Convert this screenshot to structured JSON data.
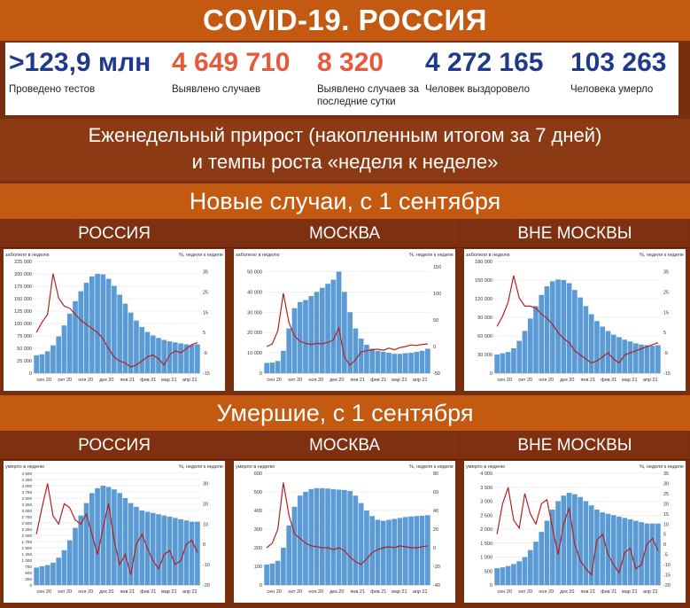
{
  "title": "COVID-19. РОССИЯ",
  "stats": [
    {
      "value": ">123,9 млн",
      "label": "Проведено тестов",
      "color": "blue"
    },
    {
      "value": "4 649 710",
      "label": "Выявлено случаев",
      "color": "red"
    },
    {
      "value": "8 320",
      "label": "Выявлено случаев за последние сутки",
      "color": "red"
    },
    {
      "value": "4 272 165",
      "label": "Человек выздоровело",
      "color": "blue"
    },
    {
      "value": "103 263",
      "label": "Человека умерло",
      "color": "blue"
    }
  ],
  "subtitle_line1": "Еженедельный прирост (накопленным итогом за 7 дней)",
  "subtitle_line2": "и темпы роста «неделя к неделе»",
  "section_cases": "Новые случаи, с 1 сентября",
  "section_deaths": "Умершие, с 1 сентября",
  "colors": {
    "bars": "#5b9bd5",
    "line": "#b22222",
    "band": "#c45a12"
  },
  "chart_data": [
    {
      "type": "bar",
      "panel_title": "РОССИЯ",
      "ylabel": "заболело в неделю",
      "y2label": "%, неделя к неделе",
      "ylim": [
        0,
        225000
      ],
      "yticks": [
        0,
        25000,
        50000,
        75000,
        100000,
        125000,
        150000,
        175000,
        200000,
        225000
      ],
      "ytick_labels": [
        "0",
        "25 000",
        "50 000",
        "75 000",
        "100 000",
        "125 000",
        "150 000",
        "175 000",
        "200 000",
        "225 000"
      ],
      "y2lim": [
        -15,
        40
      ],
      "y2ticks": [
        -15,
        -5,
        5,
        15,
        25,
        35
      ],
      "xticks": [
        "сен 20",
        "окт 20",
        "ноя 20",
        "дек 20",
        "янв 21",
        "фев 21",
        "мар 21",
        "апр 21"
      ],
      "bars": [
        36000,
        38000,
        44000,
        56000,
        74000,
        96000,
        120000,
        145000,
        165000,
        182000,
        195000,
        200000,
        199000,
        190000,
        176000,
        158000,
        140000,
        122000,
        106000,
        93000,
        83000,
        76000,
        71000,
        67000,
        64000,
        62000,
        60000,
        58000,
        57000,
        58000
      ],
      "line": [
        5,
        10,
        14,
        34,
        22,
        18,
        17,
        14,
        11,
        9,
        7,
        5,
        2,
        -3,
        -7,
        -9,
        -10,
        -12,
        -11,
        -9,
        -7,
        -6,
        -8,
        -11,
        -6,
        -4,
        -5,
        -3,
        -1,
        0
      ]
    },
    {
      "type": "bar",
      "panel_title": "МОСКВА",
      "ylabel": "заболело в неделю",
      "y2label": "%, неделя к неделе",
      "ylim": [
        0,
        55000
      ],
      "yticks": [
        0,
        10000,
        20000,
        30000,
        40000,
        50000
      ],
      "ytick_labels": [
        "0",
        "10 000",
        "20 000",
        "30 000",
        "40 000",
        "50 000"
      ],
      "y2lim": [
        -50,
        160
      ],
      "y2ticks": [
        -50,
        0,
        50,
        100,
        150
      ],
      "xticks": [
        "сен 20",
        "окт 20",
        "ноя 20",
        "дек 20",
        "янв 21",
        "фев 21",
        "мар 21",
        "апр 21"
      ],
      "bars": [
        5000,
        5200,
        6000,
        11000,
        22000,
        32000,
        35000,
        36000,
        38000,
        40000,
        42000,
        44000,
        46000,
        50000,
        40000,
        30000,
        22000,
        17000,
        14000,
        12000,
        11000,
        10500,
        10000,
        9500,
        9500,
        9800,
        10000,
        10500,
        11000,
        12000
      ],
      "line": [
        0,
        5,
        30,
        100,
        45,
        20,
        10,
        6,
        4,
        6,
        5,
        8,
        12,
        35,
        -20,
        -35,
        -25,
        -10,
        -8,
        -6,
        -5,
        -7,
        -3,
        -6,
        -2,
        0,
        3,
        2,
        4,
        5
      ]
    },
    {
      "type": "bar",
      "panel_title": "ВНЕ МОСКВЫ",
      "ylabel": "заболело в неделю",
      "y2label": "%, неделя к неделе",
      "ylim": [
        0,
        180000
      ],
      "yticks": [
        0,
        30000,
        60000,
        90000,
        120000,
        150000,
        180000
      ],
      "ytick_labels": [
        "0",
        "30 000",
        "60 000",
        "90 000",
        "120 000",
        "150 000",
        "180 000"
      ],
      "y2lim": [
        -15,
        40
      ],
      "y2ticks": [
        -15,
        -5,
        5,
        15,
        25,
        35
      ],
      "xticks": [
        "сен 20",
        "окт 20",
        "ноя 20",
        "дек 20",
        "янв 21",
        "фев 21",
        "мар 21",
        "апр 21"
      ],
      "bars": [
        30000,
        32000,
        34000,
        40000,
        52000,
        68000,
        88000,
        108000,
        126000,
        140000,
        148000,
        151000,
        150000,
        145000,
        134000,
        122000,
        108000,
        95000,
        84000,
        75000,
        68000,
        62000,
        58000,
        54000,
        51000,
        48000,
        46000,
        45000,
        44000,
        45000
      ],
      "line": [
        8,
        13,
        20,
        33,
        22,
        18,
        18,
        17,
        14,
        12,
        9,
        5,
        2,
        0,
        -4,
        -6,
        -8,
        -10,
        -9,
        -7,
        -5,
        -8,
        -10,
        -6,
        -5,
        -4,
        -3,
        -2,
        -1,
        0
      ]
    },
    {
      "type": "bar",
      "panel_title": "РОССИЯ",
      "ylabel": "умерло в неделю",
      "y2label": "%, неделя к неделе",
      "ylim": [
        0,
        4500
      ],
      "yticks": [
        0,
        250,
        500,
        750,
        1000,
        1250,
        1500,
        1750,
        2000,
        2250,
        2500,
        2750,
        3000,
        3250,
        3500,
        3750,
        4000,
        4250,
        4500
      ],
      "ytick_labels": [
        "0",
        "250",
        "500",
        "750",
        "1 000",
        "1 250",
        "1 500",
        "1 750",
        "2 000",
        "2 250",
        "2 500",
        "2 750",
        "3 000",
        "3 250",
        "3 500",
        "3 750",
        "4 000",
        "4 250",
        "4 500"
      ],
      "y2lim": [
        -20,
        35
      ],
      "y2ticks": [
        -20,
        -10,
        0,
        10,
        20,
        30
      ],
      "xticks": [
        "сен 20",
        "окт 20",
        "ноя 20",
        "дек 20",
        "янв 21",
        "фев 21",
        "мар 21",
        "апр 21"
      ],
      "bars": [
        700,
        750,
        800,
        900,
        1100,
        1400,
        1800,
        2300,
        2800,
        3300,
        3700,
        3900,
        4000,
        3950,
        3850,
        3700,
        3500,
        3300,
        3150,
        3000,
        2950,
        2900,
        2850,
        2800,
        2750,
        2700,
        2650,
        2600,
        2550,
        2550
      ],
      "line": [
        5,
        18,
        30,
        14,
        10,
        20,
        18,
        12,
        10,
        15,
        5,
        -5,
        8,
        20,
        2,
        -10,
        -5,
        -15,
        0,
        5,
        -2,
        -8,
        -12,
        -5,
        -3,
        -10,
        -8,
        0,
        2,
        -4
      ]
    },
    {
      "type": "bar",
      "panel_title": "МОСКВА",
      "ylabel": "умерло в неделю",
      "y2label": "%, неделя к неделе",
      "ylim": [
        0,
        600
      ],
      "yticks": [
        0,
        100,
        200,
        300,
        400,
        500,
        600
      ],
      "ytick_labels": [
        "0",
        "100",
        "200",
        "300",
        "400",
        "500",
        "600"
      ],
      "y2lim": [
        -40,
        80
      ],
      "y2ticks": [
        -40,
        -20,
        0,
        20,
        40,
        60,
        80
      ],
      "xticks": [
        "сен 20",
        "окт 20",
        "ноя 20",
        "дек 20",
        "янв 21",
        "фев 21",
        "мар 21",
        "апр 21"
      ],
      "bars": [
        110,
        115,
        130,
        200,
        320,
        420,
        480,
        500,
        515,
        520,
        520,
        518,
        515,
        512,
        510,
        505,
        480,
        440,
        400,
        370,
        350,
        345,
        350,
        355,
        360,
        365,
        368,
        370,
        372,
        375
      ],
      "line": [
        0,
        5,
        20,
        70,
        35,
        15,
        10,
        5,
        2,
        1,
        0,
        0,
        -2,
        0,
        -3,
        -10,
        -15,
        -18,
        -12,
        -5,
        -2,
        0,
        1,
        0,
        2,
        1,
        0,
        0,
        1,
        2
      ]
    },
    {
      "type": "bar",
      "panel_title": "ВНЕ МОСКВЫ",
      "ylabel": "умерло в неделю",
      "y2label": "%, неделя к неделе",
      "ylim": [
        0,
        4000
      ],
      "yticks": [
        0,
        500,
        1000,
        1500,
        2000,
        2500,
        3000,
        3500,
        4000
      ],
      "ytick_labels": [
        "0",
        "500",
        "1 000",
        "1 500",
        "2 000",
        "2 500",
        "3 000",
        "3 500",
        "4 000"
      ],
      "y2lim": [
        -20,
        35
      ],
      "y2ticks": [
        -20,
        -15,
        -10,
        -5,
        0,
        5,
        10,
        15,
        20,
        25,
        30,
        35
      ],
      "xticks": [
        "сен 20",
        "окт 20",
        "ноя 20",
        "дек 20",
        "янв 21",
        "фев 21",
        "мар 21",
        "апр 21"
      ],
      "bars": [
        600,
        630,
        680,
        750,
        850,
        1000,
        1250,
        1550,
        1900,
        2300,
        2700,
        3000,
        3200,
        3300,
        3250,
        3150,
        3000,
        2850,
        2700,
        2600,
        2550,
        2500,
        2450,
        2400,
        2350,
        2300,
        2250,
        2200,
        2200,
        2200
      ],
      "line": [
        5,
        20,
        28,
        12,
        8,
        25,
        15,
        10,
        20,
        22,
        8,
        -5,
        10,
        18,
        0,
        -8,
        -12,
        -15,
        2,
        5,
        -5,
        -10,
        -14,
        -4,
        -2,
        -12,
        -10,
        0,
        3,
        -3
      ]
    }
  ]
}
